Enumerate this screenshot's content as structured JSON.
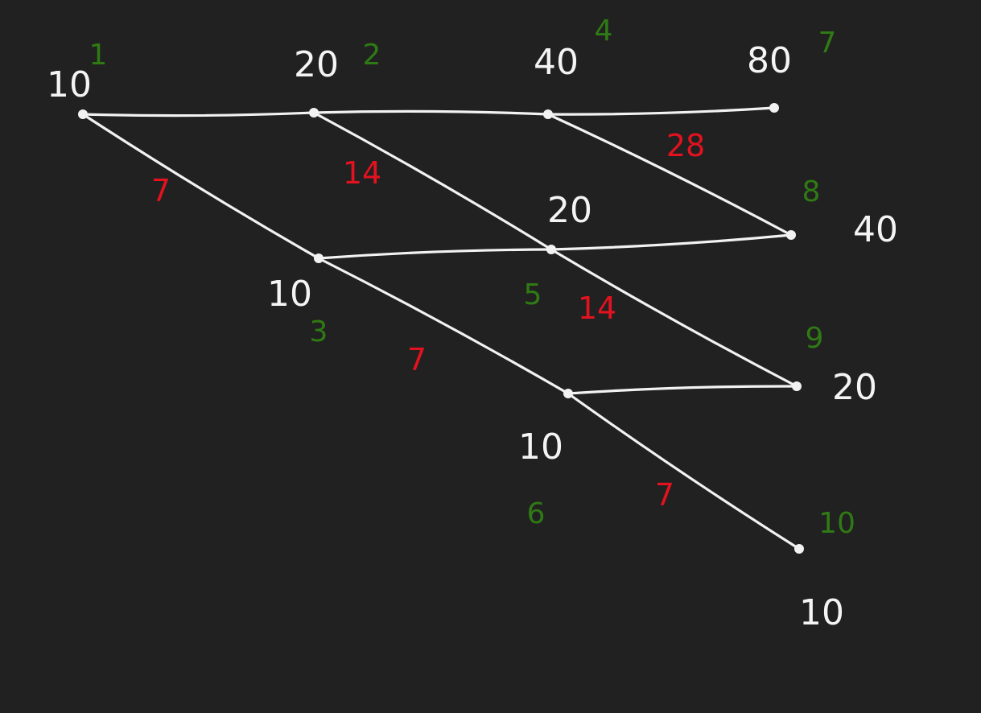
{
  "colors": {
    "background": "#212121",
    "edge": "#f2f2f2",
    "value_label": "#f4f4f4",
    "index_label": "#2f7a14",
    "weight_label": "#e3121f"
  },
  "nodes": [
    {
      "id": "n1",
      "value": "10",
      "index": "1"
    },
    {
      "id": "n2",
      "value": "20",
      "index": "2"
    },
    {
      "id": "n4",
      "value": "40",
      "index": "4"
    },
    {
      "id": "n7",
      "value": "80",
      "index": "7"
    },
    {
      "id": "n3",
      "value": "10",
      "index": "3"
    },
    {
      "id": "n5",
      "value": "20",
      "index": "5"
    },
    {
      "id": "n8",
      "value": "40",
      "index": "8"
    },
    {
      "id": "n6",
      "value": "10",
      "index": "6"
    },
    {
      "id": "n9",
      "value": "20",
      "index": "9"
    },
    {
      "id": "n10",
      "value": "10",
      "index": "10"
    }
  ],
  "edges": [
    {
      "id": "e-n1-n2",
      "from": "n1",
      "to": "n2"
    },
    {
      "id": "e-n2-n4",
      "from": "n2",
      "to": "n4"
    },
    {
      "id": "e-n4-n7",
      "from": "n4",
      "to": "n7"
    },
    {
      "id": "e-n3-n5",
      "from": "n3",
      "to": "n5"
    },
    {
      "id": "e-n5-n8",
      "from": "n5",
      "to": "n8"
    },
    {
      "id": "e-n6-n9",
      "from": "n6",
      "to": "n9"
    },
    {
      "id": "e-n1-n3",
      "from": "n1",
      "to": "n3",
      "weight": "7"
    },
    {
      "id": "e-n3-n6",
      "from": "n3",
      "to": "n6",
      "weight": "7"
    },
    {
      "id": "e-n6-n10",
      "from": "n6",
      "to": "n10",
      "weight": "7"
    },
    {
      "id": "e-n2-n5",
      "from": "n2",
      "to": "n5",
      "weight": "14"
    },
    {
      "id": "e-n5-n9",
      "from": "n5",
      "to": "n9",
      "weight": "14"
    },
    {
      "id": "e-n4-n8",
      "from": "n4",
      "to": "n8",
      "weight": "28"
    }
  ]
}
